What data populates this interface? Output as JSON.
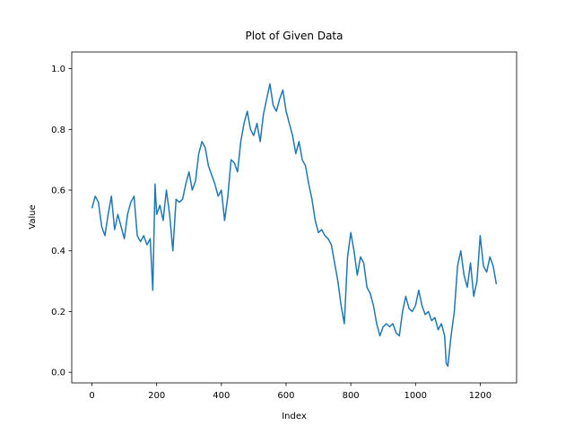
{
  "chart_data": {
    "type": "line",
    "title": "Plot of Given Data",
    "x_label": "Index",
    "y_label": "Value",
    "x": [
      0,
      10,
      20,
      30,
      40,
      50,
      60,
      70,
      80,
      90,
      100,
      110,
      120,
      130,
      140,
      150,
      160,
      170,
      180,
      188,
      195,
      200,
      210,
      220,
      230,
      240,
      250,
      260,
      270,
      280,
      290,
      300,
      310,
      320,
      330,
      340,
      350,
      360,
      370,
      380,
      390,
      400,
      410,
      420,
      430,
      440,
      450,
      460,
      470,
      480,
      490,
      500,
      510,
      520,
      530,
      540,
      550,
      560,
      570,
      580,
      590,
      600,
      610,
      620,
      630,
      640,
      650,
      660,
      670,
      680,
      690,
      700,
      710,
      720,
      730,
      740,
      750,
      760,
      770,
      780,
      790,
      800,
      810,
      820,
      830,
      840,
      850,
      860,
      870,
      880,
      890,
      900,
      910,
      920,
      930,
      940,
      950,
      960,
      970,
      980,
      990,
      1000,
      1010,
      1020,
      1030,
      1040,
      1050,
      1060,
      1070,
      1080,
      1090,
      1095,
      1100,
      1110,
      1120,
      1130,
      1140,
      1150,
      1160,
      1170,
      1180,
      1190,
      1200,
      1210,
      1220,
      1230,
      1240,
      1250
    ],
    "series": [
      {
        "name": "Value",
        "color": "#1f77b4",
        "values": [
          0.54,
          0.58,
          0.56,
          0.48,
          0.45,
          0.52,
          0.58,
          0.47,
          0.52,
          0.48,
          0.44,
          0.52,
          0.56,
          0.58,
          0.45,
          0.43,
          0.45,
          0.42,
          0.44,
          0.27,
          0.62,
          0.52,
          0.55,
          0.5,
          0.6,
          0.52,
          0.4,
          0.57,
          0.56,
          0.57,
          0.62,
          0.66,
          0.6,
          0.63,
          0.72,
          0.76,
          0.74,
          0.68,
          0.65,
          0.62,
          0.58,
          0.6,
          0.5,
          0.58,
          0.7,
          0.69,
          0.66,
          0.76,
          0.82,
          0.86,
          0.8,
          0.78,
          0.82,
          0.76,
          0.85,
          0.9,
          0.95,
          0.88,
          0.86,
          0.9,
          0.93,
          0.86,
          0.82,
          0.78,
          0.72,
          0.76,
          0.7,
          0.68,
          0.62,
          0.57,
          0.5,
          0.46,
          0.47,
          0.45,
          0.44,
          0.42,
          0.36,
          0.3,
          0.22,
          0.16,
          0.38,
          0.46,
          0.4,
          0.32,
          0.38,
          0.36,
          0.28,
          0.26,
          0.22,
          0.16,
          0.12,
          0.15,
          0.16,
          0.15,
          0.16,
          0.13,
          0.12,
          0.2,
          0.25,
          0.21,
          0.2,
          0.22,
          0.27,
          0.22,
          0.19,
          0.2,
          0.17,
          0.18,
          0.14,
          0.16,
          0.12,
          0.03,
          0.02,
          0.12,
          0.2,
          0.35,
          0.4,
          0.32,
          0.28,
          0.36,
          0.25,
          0.3,
          0.45,
          0.35,
          0.33,
          0.38,
          0.35,
          0.29
        ]
      }
    ],
    "xlim": [
      -62.5,
      1312.5
    ],
    "ylim": [
      -0.035,
      1.055
    ],
    "xticks": [
      0,
      200,
      400,
      600,
      800,
      1000,
      1200
    ],
    "yticks": [
      {
        "value": 0,
        "label": "0.0"
      },
      {
        "value": 0.2,
        "label": "0.2"
      },
      {
        "value": 0.4,
        "label": "0.4"
      },
      {
        "value": 0.6,
        "label": "0.6"
      },
      {
        "value": 0.8,
        "label": "0.8"
      },
      {
        "value": 1,
        "label": "1.0"
      }
    ],
    "grid": false
  }
}
